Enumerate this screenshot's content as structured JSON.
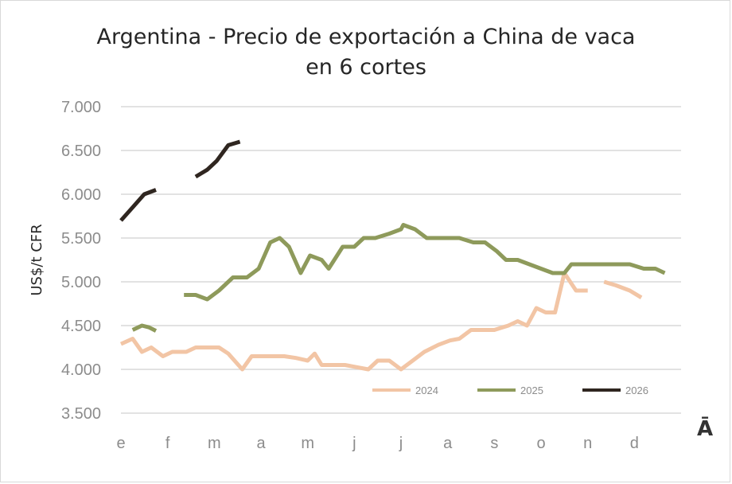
{
  "chart_data": {
    "type": "line",
    "title_line1": "Argentina - Precio de exportación a China de vaca",
    "title_line2": "en 6 cortes",
    "ylabel": "US$/t CFR",
    "xlabel": "",
    "ylim": [
      3500,
      7000
    ],
    "yticks": [
      3500,
      4000,
      4500,
      5000,
      5500,
      6000,
      6500,
      7000
    ],
    "ytick_labels": [
      "3.500",
      "4.000",
      "4.500",
      "5.000",
      "5.500",
      "6.000",
      "6.500",
      "7.000"
    ],
    "xlim": [
      0,
      12
    ],
    "month_labels": [
      "e",
      "f",
      "m",
      "a",
      "m",
      "j",
      "j",
      "a",
      "s",
      "o",
      "n",
      "d"
    ],
    "grid": "horizontal",
    "legend_position": "bottom-right",
    "series": [
      {
        "name": "2024",
        "color": "#f2c5a5",
        "segments": [
          [
            [
              0,
              4290
            ],
            [
              0.25,
              4350
            ],
            [
              0.45,
              4200
            ],
            [
              0.65,
              4250
            ],
            [
              0.9,
              4150
            ],
            [
              1.1,
              4200
            ],
            [
              1.4,
              4200
            ],
            [
              1.6,
              4250
            ],
            [
              2.1,
              4250
            ],
            [
              2.3,
              4180
            ],
            [
              2.6,
              4000
            ],
            [
              2.8,
              4150
            ],
            [
              3.2,
              4150
            ],
            [
              3.5,
              4150
            ],
            [
              3.75,
              4130
            ],
            [
              4.0,
              4100
            ],
            [
              4.15,
              4180
            ],
            [
              4.3,
              4050
            ],
            [
              4.6,
              4050
            ],
            [
              4.8,
              4050
            ],
            [
              5.0,
              4030
            ],
            [
              5.3,
              4000
            ],
            [
              5.5,
              4100
            ],
            [
              5.75,
              4100
            ],
            [
              6.0,
              4000
            ],
            [
              6.25,
              4100
            ],
            [
              6.5,
              4200
            ],
            [
              6.8,
              4280
            ],
            [
              7.05,
              4330
            ],
            [
              7.25,
              4350
            ],
            [
              7.5,
              4450
            ],
            [
              7.8,
              4450
            ],
            [
              8.0,
              4450
            ],
            [
              8.3,
              4500
            ],
            [
              8.5,
              4550
            ],
            [
              8.7,
              4500
            ],
            [
              8.9,
              4700
            ],
            [
              9.1,
              4650
            ],
            [
              9.3,
              4650
            ],
            [
              9.5,
              5100
            ],
            [
              9.75,
              4900
            ],
            [
              10.0,
              4900
            ]
          ],
          [
            [
              10.35,
              5000
            ],
            [
              10.6,
              4960
            ],
            [
              10.9,
              4900
            ],
            [
              11.15,
              4820
            ]
          ]
        ]
      },
      {
        "name": "2025",
        "color": "#8e9a5b",
        "segments": [
          [
            [
              0.25,
              4450
            ],
            [
              0.45,
              4500
            ],
            [
              0.6,
              4480
            ],
            [
              0.75,
              4440
            ]
          ],
          [
            [
              1.35,
              4850
            ],
            [
              1.6,
              4850
            ],
            [
              1.85,
              4800
            ],
            [
              2.1,
              4900
            ],
            [
              2.4,
              5050
            ],
            [
              2.7,
              5050
            ],
            [
              2.95,
              5150
            ],
            [
              3.2,
              5450
            ],
            [
              3.4,
              5500
            ],
            [
              3.6,
              5400
            ],
            [
              3.85,
              5100
            ],
            [
              4.05,
              5300
            ],
            [
              4.3,
              5250
            ],
            [
              4.45,
              5150
            ],
            [
              4.75,
              5400
            ],
            [
              5.0,
              5400
            ],
            [
              5.2,
              5500
            ],
            [
              5.45,
              5500
            ],
            [
              5.75,
              5550
            ],
            [
              6.0,
              5600
            ],
            [
              6.05,
              5650
            ],
            [
              6.3,
              5600
            ],
            [
              6.55,
              5500
            ],
            [
              6.8,
              5500
            ],
            [
              7.05,
              5500
            ],
            [
              7.25,
              5500
            ],
            [
              7.55,
              5450
            ],
            [
              7.8,
              5450
            ],
            [
              8.05,
              5350
            ],
            [
              8.25,
              5250
            ],
            [
              8.5,
              5250
            ],
            [
              8.75,
              5200
            ],
            [
              9.0,
              5150
            ],
            [
              9.25,
              5100
            ],
            [
              9.5,
              5100
            ],
            [
              9.65,
              5200
            ],
            [
              10.0,
              5200
            ],
            [
              10.3,
              5200
            ],
            [
              10.65,
              5200
            ],
            [
              10.9,
              5200
            ],
            [
              11.2,
              5150
            ],
            [
              11.45,
              5150
            ],
            [
              11.65,
              5100
            ]
          ]
        ]
      },
      {
        "name": "2026",
        "color": "#2f2620",
        "segments": [
          [
            [
              0,
              5700
            ],
            [
              0.25,
              5850
            ],
            [
              0.5,
              6000
            ],
            [
              0.75,
              6050
            ]
          ],
          [
            [
              1.6,
              6200
            ],
            [
              1.85,
              6280
            ],
            [
              2.05,
              6380
            ],
            [
              2.3,
              6560
            ],
            [
              2.55,
              6600
            ]
          ]
        ]
      }
    ]
  },
  "page_marks": {
    "corner_glyph": "Ā",
    "bottom_glyph": "̄"
  }
}
